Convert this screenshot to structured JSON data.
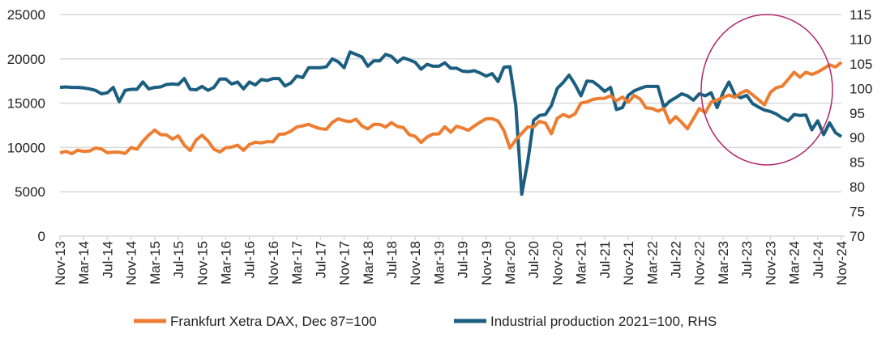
{
  "chart_data": {
    "type": "line",
    "title": "",
    "x_start": "Nov-13",
    "x_tick_labels": [
      "Nov-13",
      "Mar-14",
      "Jul-14",
      "Nov-14",
      "Mar-15",
      "Jul-15",
      "Nov-15",
      "Mar-16",
      "Jul-16",
      "Nov-16",
      "Mar-17",
      "Jul-17",
      "Nov-17",
      "Mar-18",
      "Jul-18",
      "Nov-18",
      "Mar-19",
      "Jul-19",
      "Nov-19",
      "Mar-20",
      "Jul-20",
      "Nov-20",
      "Mar-21",
      "Jul-21",
      "Nov-21",
      "Mar-22",
      "Jul-22",
      "Nov-22",
      "Mar-23",
      "Jul-23",
      "Nov-23",
      "Mar-24",
      "Jul-24",
      "Nov-24"
    ],
    "y_left": {
      "ylim": [
        0,
        25000
      ],
      "ticks": [
        "0",
        "5000",
        "10000",
        "15000",
        "20000",
        "25000"
      ]
    },
    "y_right": {
      "ylim": [
        70,
        115
      ],
      "ticks": [
        "70",
        "75",
        "80",
        "85",
        "90",
        "95",
        "100",
        "105",
        "110",
        "115"
      ]
    },
    "grid": true,
    "legend_position": "bottom",
    "annotation": "ellipse highlighting Mar-23 to Nov-24 divergence",
    "colors": {
      "dax": "#ED7D31",
      "ip": "#1B5E80",
      "ellipse": "#B0286E",
      "grid": "#D9D9D9"
    },
    "series": [
      {
        "name": "Frankfurt Xetra DAX, Dec 87=100",
        "axis": "left",
        "values": [
          9405,
          9552,
          9306,
          9692,
          9556,
          9603,
          9943,
          9833,
          9407,
          9470,
          9474,
          9327,
          9980,
          9806,
          10694,
          11402,
          11966,
          11454,
          11414,
          10945,
          11309,
          10259,
          9660,
          10850,
          11382,
          10743,
          9798,
          9495,
          9966,
          10039,
          10263,
          9680,
          10337,
          10593,
          10511,
          10665,
          10640,
          11481,
          11535,
          11834,
          12313,
          12438,
          12615,
          12325,
          12118,
          12056,
          12829,
          13230,
          13024,
          12918,
          13189,
          12436,
          12097,
          12612,
          12605,
          12306,
          12806,
          12364,
          12247,
          11447,
          11257,
          10559,
          11173,
          11516,
          11526,
          12344,
          11727,
          12399,
          12189,
          11939,
          12428,
          12867,
          13236,
          13249,
          12982,
          11890,
          9936,
          10862,
          11587,
          12311,
          12313,
          12945,
          12761,
          11556,
          13291,
          13719,
          13433,
          13786,
          15008,
          15136,
          15421,
          15531,
          15544,
          15835,
          15261,
          15689,
          15100,
          15885,
          15471,
          14461,
          14415,
          14098,
          14388,
          12784,
          13484,
          12835,
          12114,
          13254,
          14397,
          13924,
          15128,
          15365,
          15629,
          15922,
          15664,
          16148,
          16447,
          15947,
          15387,
          14810,
          16215,
          16752,
          16904,
          17678,
          18492,
          17932,
          18498,
          18235,
          18509,
          18907,
          19325,
          19078,
          19626
        ]
      },
      {
        "name": "Industrial production 2021=100, RHS",
        "axis": "right",
        "values": [
          100.2,
          100.3,
          100.2,
          100.2,
          100.1,
          99.9,
          99.6,
          98.9,
          99.1,
          100.2,
          97.3,
          99.6,
          99.8,
          99.8,
          101.3,
          99.9,
          100.2,
          100.3,
          100.8,
          100.9,
          100.8,
          102.0,
          99.8,
          99.7,
          100.4,
          99.6,
          100.2,
          101.9,
          101.9,
          100.9,
          101.3,
          99.9,
          101.3,
          100.7,
          101.8,
          101.6,
          102.0,
          102.0,
          100.5,
          101.1,
          102.5,
          102.2,
          104.2,
          104.2,
          104.2,
          104.4,
          106.0,
          105.4,
          104.2,
          107.4,
          106.9,
          106.4,
          104.5,
          105.6,
          105.6,
          106.9,
          106.5,
          105.3,
          106.2,
          105.8,
          105.3,
          103.9,
          104.9,
          104.5,
          104.5,
          105.2,
          104.1,
          104.1,
          103.5,
          103.4,
          103.6,
          103.1,
          102.5,
          103.0,
          101.4,
          104.3,
          104.4,
          96.5,
          78.5,
          85.0,
          93.5,
          94.5,
          94.7,
          96.5,
          100.0,
          101.2,
          102.7,
          100.8,
          98.5,
          101.5,
          101.4,
          100.5,
          99.4,
          100.2,
          95.7,
          96.1,
          98.6,
          99.5,
          100.0,
          100.4,
          100.4,
          100.4,
          96.2,
          97.4,
          98.1,
          98.9,
          98.5,
          97.6,
          98.9,
          98.5,
          99.1,
          96.1,
          99.1,
          101.3,
          98.7,
          98.1,
          98.6,
          96.9,
          96.2,
          95.6,
          95.3,
          94.8,
          94.0,
          93.4,
          94.7,
          94.5,
          94.6,
          91.6,
          93.4,
          90.6,
          93.0,
          91.0,
          90.2
        ]
      }
    ]
  }
}
